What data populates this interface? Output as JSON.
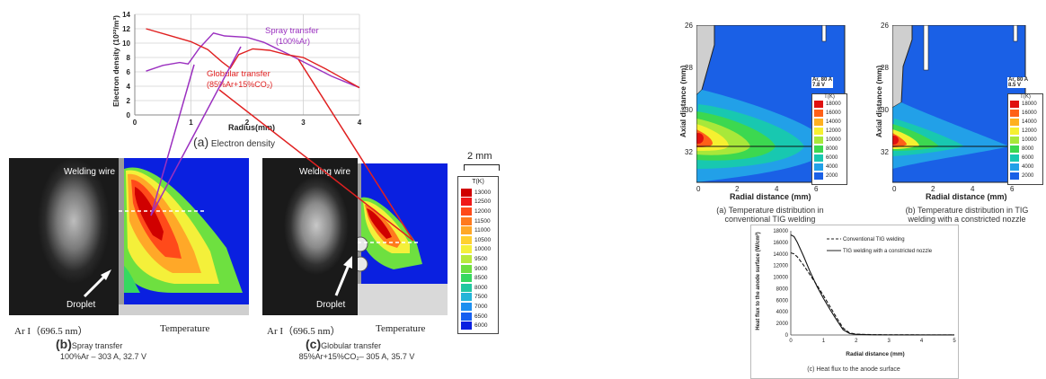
{
  "chart_data": [
    {
      "id": "electron-density",
      "type": "line",
      "ylabel": "Electron density (10²²/m³)",
      "xlabel": "Radius(mm)",
      "xlim": [
        0,
        4
      ],
      "ylim": [
        0,
        14
      ],
      "xticks": [
        "0",
        "1",
        "2",
        "3",
        "4"
      ],
      "yticks": [
        "0",
        "2",
        "4",
        "6",
        "8",
        "10",
        "12",
        "14"
      ],
      "grid": true,
      "series": [
        {
          "name": "Spray transfer",
          "name2": "(100%Ar)",
          "color": "#9b30c0",
          "x": [
            0.2,
            0.5,
            0.8,
            0.95,
            1.15,
            1.4,
            1.6,
            2.0,
            2.3,
            2.7,
            3.1,
            3.5,
            4.0
          ],
          "y": [
            6.1,
            6.9,
            7.3,
            7.1,
            9.3,
            11.4,
            11.0,
            10.8,
            10.1,
            8.6,
            7.0,
            5.4,
            3.8
          ]
        },
        {
          "name": "Globular transfer",
          "name2": "(85%Ar+15%CO₂)",
          "color": "#e02020",
          "x": [
            0.2,
            0.6,
            1.0,
            1.3,
            1.55,
            1.7,
            1.85,
            2.1,
            2.4,
            2.7,
            3.0,
            3.4,
            4.0
          ],
          "y": [
            12.0,
            11.1,
            10.2,
            9.1,
            7.4,
            6.5,
            8.4,
            9.2,
            9.0,
            8.4,
            8.0,
            6.4,
            3.8
          ]
        }
      ],
      "caption_letter": "(a)",
      "caption_text": "Electron density"
    },
    {
      "id": "heat-flux",
      "type": "line",
      "xlabel": "Radial distance (mm)",
      "ylabel": "Heat flux to the anode surface (W/cm²)",
      "xlim": [
        0,
        5
      ],
      "ylim": [
        0,
        18000
      ],
      "xticks": [
        "0",
        "1",
        "2",
        "3",
        "4",
        "5"
      ],
      "yticks": [
        "0",
        "2000",
        "4000",
        "6000",
        "8000",
        "10000",
        "12000",
        "14000",
        "16000",
        "18000"
      ],
      "series": [
        {
          "name": "Conventional TIG welding",
          "dash": true,
          "x": [
            0,
            0.1,
            0.2,
            0.4,
            0.6,
            0.8,
            1.0,
            1.2,
            1.4,
            1.6,
            1.8,
            2.0,
            2.5,
            3,
            4,
            5
          ],
          "y": [
            14200,
            14000,
            13500,
            12000,
            10300,
            8600,
            6800,
            4900,
            3000,
            1200,
            350,
            150,
            60,
            30,
            20,
            10
          ]
        },
        {
          "name": "TIG welding with a constricted nozzle",
          "dash": false,
          "x": [
            0,
            0.1,
            0.2,
            0.4,
            0.6,
            0.8,
            1.0,
            1.2,
            1.4,
            1.6,
            1.8,
            2.0,
            2.5,
            3,
            4,
            5
          ],
          "y": [
            17300,
            17000,
            16000,
            13500,
            10800,
            8400,
            6300,
            4400,
            2600,
            900,
            250,
            100,
            40,
            20,
            10,
            5
          ]
        }
      ],
      "caption": "(c) Heat flux to the anode surface"
    }
  ],
  "spectro": {
    "scale_label": "2 mm",
    "legend_title": "T(K)",
    "legend_values": [
      "13000",
      "12500",
      "12000",
      "11500",
      "11000",
      "10500",
      "10000",
      "9500",
      "9000",
      "8500",
      "8000",
      "7500",
      "7000",
      "6500",
      "6000"
    ],
    "legend_colors": [
      "#d00000",
      "#f01818",
      "#ff4a1a",
      "#ff7a1e",
      "#ffa828",
      "#ffd030",
      "#f4f03a",
      "#b8ea3c",
      "#6ee040",
      "#36d860",
      "#22c8a0",
      "#24b4d8",
      "#1e90f0",
      "#1760f0",
      "#0a20e0"
    ],
    "left": {
      "wire_label": "Welding wire",
      "droplet_label": "Droplet",
      "arl_label": "Ar I（696.5 nm）",
      "temp_label": "Temperature",
      "caption_letter": "(b)",
      "caption_text": "Spray transfer",
      "caption_sub": "100%Ar – 303 A, 32.7 V"
    },
    "right": {
      "wire_label": "Welding wire",
      "droplet_label": "Droplet",
      "arl_label": "Ar I（696.5 nm）",
      "temp_label": "Temperature",
      "caption_letter": "(c)",
      "caption_text": "Globular transfer",
      "caption_sub": "85%Ar+15%CO₂– 305 A, 35.7 V"
    }
  },
  "tig": {
    "ylabel": "Axial distance (mm)",
    "xlabel": "Radial distance (mm)",
    "yticks": [
      "26",
      "28",
      "30",
      "32"
    ],
    "xticks": [
      "0",
      "2",
      "4",
      "6"
    ],
    "legend_title": "T(K)",
    "legend_values": [
      "18000",
      "16000",
      "14000",
      "12000",
      "10000",
      "8000",
      "6000",
      "4000",
      "2000"
    ],
    "legend_colors": [
      "#e01010",
      "#ff6018",
      "#ffb020",
      "#f6f030",
      "#a8e83a",
      "#3cd850",
      "#18c8b0",
      "#22a0e8",
      "#1a60e6"
    ],
    "left": {
      "cond1": "Ar, 80 A",
      "cond2": "7.8 V",
      "caption1": "(a) Temperature distribution in",
      "caption2": "conventional TIG welding"
    },
    "right": {
      "cond1": "Ar, 80 A",
      "cond2": "8.5 V",
      "caption1": "(b) Temperature distribution in TIG",
      "caption2": "welding with a constricted nozzle"
    }
  }
}
